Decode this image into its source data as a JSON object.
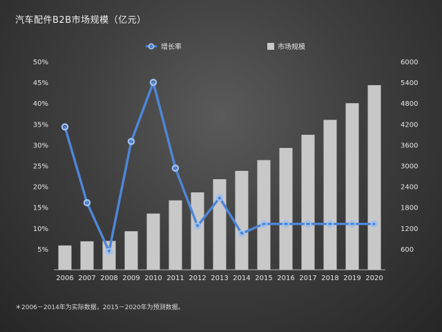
{
  "chart_data": {
    "type": "bar",
    "title": "汽车配件B2B市场规模（亿元）",
    "categories": [
      "2006",
      "2007",
      "2008",
      "2009",
      "2010",
      "2011",
      "2012",
      "2013",
      "2014",
      "2015",
      "2016",
      "2017",
      "2018",
      "2019",
      "2020"
    ],
    "series": [
      {
        "name": "市场规模",
        "type": "bar",
        "axis": "right",
        "values": [
          700,
          820,
          830,
          1110,
          1620,
          2000,
          2230,
          2610,
          2850,
          3160,
          3510,
          3890,
          4320,
          4800,
          5320
        ]
      },
      {
        "name": "增长率",
        "type": "line",
        "axis": "left",
        "values": [
          34.3,
          16.1,
          4.4,
          30.8,
          45.0,
          24.4,
          10.5,
          17.3,
          8.7,
          11.0,
          11.0,
          11.0,
          11.0,
          11.0,
          11.0
        ]
      }
    ],
    "y_left": {
      "ylim": [
        0,
        50
      ],
      "ticks": [
        "5%",
        "10%",
        "15%",
        "20%",
        "25%",
        "30%",
        "35%",
        "40%",
        "45%",
        "50%"
      ]
    },
    "y_right": {
      "ylim": [
        0,
        6000
      ],
      "ticks": [
        "600",
        "1200",
        "1800",
        "2400",
        "3000",
        "3600",
        "4200",
        "4800",
        "5400",
        "6000"
      ]
    },
    "legend_position": "top",
    "grid": false,
    "colors": {
      "bar": "#c8c8c8",
      "line": "#4f86d8"
    },
    "footnote": "＊2006－2014年为实际数据，2015－2020年为预测数据。"
  }
}
